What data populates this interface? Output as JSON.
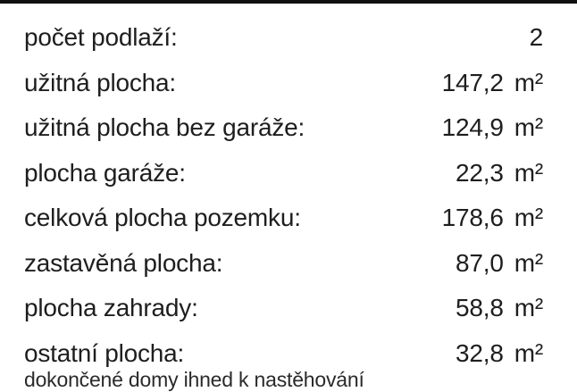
{
  "page": {
    "background_color": "#ffffff",
    "top_bar_color": "#0f0f0f",
    "text_color": "#1e1e1e"
  },
  "spec_table": {
    "rows": [
      {
        "label": "počet podlaží:",
        "value": "2",
        "unit": ""
      },
      {
        "label": "užitná plocha:",
        "value": "147,2",
        "unit": "m²"
      },
      {
        "label": "užitná plocha bez garáže:",
        "value": "124,9",
        "unit": "m²"
      },
      {
        "label": "plocha garáže:",
        "value": "22,3",
        "unit": "m²"
      },
      {
        "label": "celková plocha pozemku:",
        "value": "178,6",
        "unit": "m²"
      },
      {
        "label": "zastavěná plocha:",
        "value": "87,0",
        "unit": "m²"
      },
      {
        "label": "plocha zahrady:",
        "value": "58,8",
        "unit": "m²"
      },
      {
        "label": "ostatní plocha:",
        "value": "32,8",
        "unit": "m²"
      }
    ]
  },
  "footnote": {
    "text": "dokončené domy ihned k nastěhování"
  }
}
